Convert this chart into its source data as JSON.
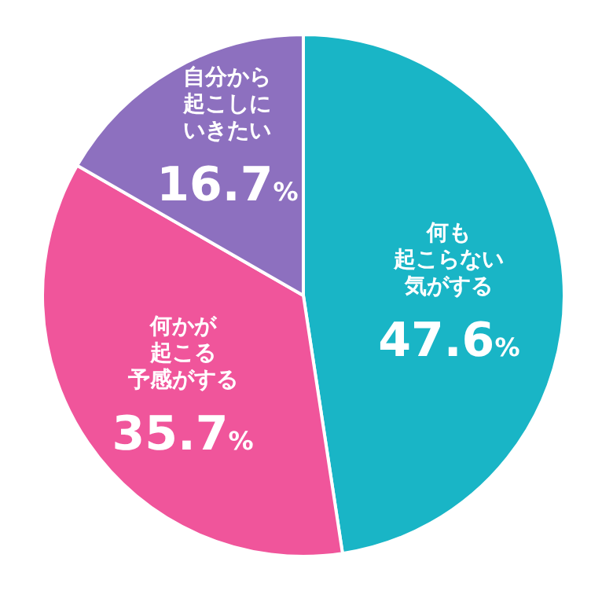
{
  "chart_data": {
    "type": "pie",
    "categories": [
      "何も起こらない気がする",
      "何かが起こる予感がする",
      "自分から起こしにいきたい"
    ],
    "values": [
      47.6,
      35.7,
      16.7
    ],
    "colors": [
      "#19b5c6",
      "#f0559b",
      "#8d70bf"
    ],
    "value_labels": [
      "47.6%",
      "35.7%",
      "16.7%"
    ]
  }
}
